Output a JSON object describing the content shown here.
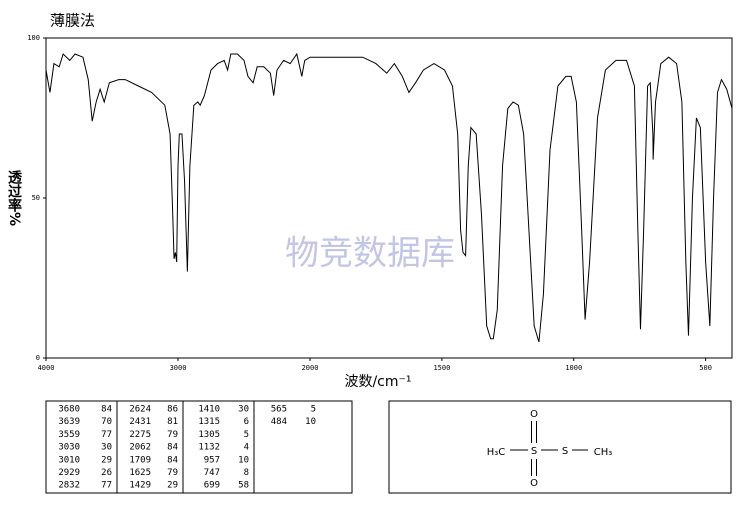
{
  "chart_data": {
    "type": "line",
    "title": "薄膜法",
    "xlabel": "波数/cm⁻¹",
    "ylabel": "透过率%",
    "watermark": "物竞数据库",
    "xlim": [
      4000,
      400
    ],
    "xscale_break": 2000,
    "xticks": [
      4000,
      3000,
      2000,
      1500,
      1000,
      500
    ],
    "ylim": [
      0,
      100
    ],
    "yticks": [
      0,
      50,
      100
    ],
    "x": [
      4000,
      3970,
      3940,
      3900,
      3870,
      3820,
      3780,
      3720,
      3680,
      3650,
      3620,
      3590,
      3559,
      3520,
      3450,
      3400,
      3300,
      3200,
      3150,
      3100,
      3060,
      3040,
      3030,
      3020,
      3010,
      3000,
      2990,
      2970,
      2950,
      2929,
      2910,
      2880,
      2850,
      2832,
      2800,
      2750,
      2700,
      2650,
      2624,
      2600,
      2550,
      2500,
      2470,
      2431,
      2400,
      2350,
      2300,
      2275,
      2250,
      2200,
      2150,
      2100,
      2062,
      2040,
      2000,
      1950,
      1900,
      1850,
      1800,
      1750,
      1709,
      1680,
      1650,
      1625,
      1600,
      1570,
      1530,
      1490,
      1460,
      1440,
      1429,
      1420,
      1410,
      1400,
      1390,
      1370,
      1350,
      1330,
      1315,
      1305,
      1290,
      1270,
      1250,
      1230,
      1210,
      1190,
      1170,
      1150,
      1132,
      1115,
      1090,
      1060,
      1030,
      1010,
      990,
      970,
      957,
      940,
      910,
      880,
      840,
      800,
      770,
      757,
      747,
      735,
      720,
      710,
      700,
      699,
      690,
      670,
      640,
      610,
      590,
      575,
      565,
      550,
      535,
      520,
      500,
      484,
      470,
      455,
      440,
      420,
      400
    ],
    "series": [
      {
        "color": "#000000",
        "values": [
          90,
          83,
          92,
          91,
          95,
          93,
          95,
          94,
          87,
          74,
          80,
          84,
          80,
          86,
          87,
          87,
          85,
          83,
          81,
          79,
          70,
          45,
          31,
          33,
          30,
          60,
          70,
          70,
          55,
          27,
          60,
          79,
          80,
          79,
          82,
          90,
          92,
          93,
          90,
          95,
          95,
          93,
          88,
          86,
          91,
          91,
          89,
          82,
          90,
          93,
          92,
          95,
          88,
          93,
          94,
          94,
          94,
          94,
          94,
          92,
          89,
          92,
          88,
          83,
          86,
          90,
          92,
          90,
          85,
          70,
          40,
          33,
          32,
          60,
          72,
          70,
          45,
          10,
          6,
          6,
          15,
          60,
          78,
          80,
          79,
          70,
          40,
          10,
          5,
          20,
          65,
          85,
          88,
          88,
          80,
          40,
          12,
          30,
          75,
          90,
          93,
          93,
          85,
          40,
          9,
          40,
          85,
          86,
          70,
          62,
          80,
          92,
          94,
          92,
          80,
          30,
          7,
          50,
          75,
          72,
          30,
          10,
          50,
          83,
          87,
          84,
          78
        ]
      }
    ]
  },
  "peak_table": [
    [
      [
        3680,
        84
      ],
      [
        3639,
        70
      ],
      [
        3559,
        77
      ],
      [
        3030,
        30
      ],
      [
        3010,
        29
      ],
      [
        2929,
        26
      ],
      [
        2832,
        77
      ]
    ],
    [
      [
        2624,
        86
      ],
      [
        2431,
        81
      ],
      [
        2275,
        79
      ],
      [
        2062,
        84
      ],
      [
        1709,
        84
      ],
      [
        1625,
        79
      ],
      [
        1429,
        29
      ]
    ],
    [
      [
        1410,
        30
      ],
      [
        1315,
        6
      ],
      [
        1305,
        5
      ],
      [
        1132,
        4
      ],
      [
        957,
        10
      ],
      [
        747,
        8
      ],
      [
        699,
        58
      ]
    ],
    [
      [
        565,
        5
      ],
      [
        484,
        10
      ]
    ]
  ],
  "structure": {
    "atoms": [
      "H₃C",
      "S",
      "O",
      "O",
      "S",
      "CH₃"
    ]
  }
}
